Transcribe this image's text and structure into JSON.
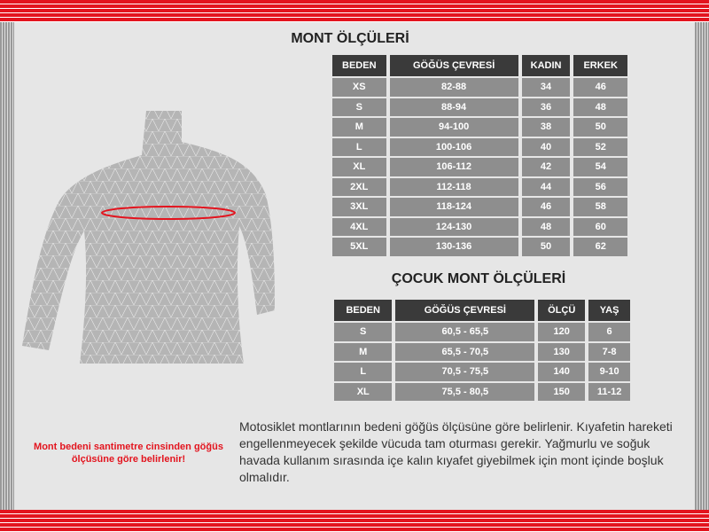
{
  "adult": {
    "title": "MONT ÖLÇÜLERİ",
    "headers": [
      "BEDEN",
      "GÖĞÜS ÇEVRESİ",
      "KADIN",
      "ERKEK"
    ],
    "rows": [
      [
        "XS",
        "82-88",
        "34",
        "46"
      ],
      [
        "S",
        "88-94",
        "36",
        "48"
      ],
      [
        "M",
        "94-100",
        "38",
        "50"
      ],
      [
        "L",
        "100-106",
        "40",
        "52"
      ],
      [
        "XL",
        "106-112",
        "42",
        "54"
      ],
      [
        "2XL",
        "112-118",
        "44",
        "56"
      ],
      [
        "3XL",
        "118-124",
        "46",
        "58"
      ],
      [
        "4XL",
        "124-130",
        "48",
        "60"
      ],
      [
        "5XL",
        "130-136",
        "50",
        "62"
      ]
    ]
  },
  "child": {
    "title": "ÇOCUK MONT ÖLÇÜLERİ",
    "headers": [
      "BEDEN",
      "GÖĞÜS ÇEVRESİ",
      "ÖLÇÜ",
      "YAŞ"
    ],
    "rows": [
      [
        "S",
        "60,5 - 65,5",
        "120",
        "6"
      ],
      [
        "M",
        "65,5 - 70,5",
        "130",
        "7-8"
      ],
      [
        "L",
        "70,5 - 75,5",
        "140",
        "9-10"
      ],
      [
        "XL",
        "75,5 - 80,5",
        "150",
        "11-12"
      ]
    ]
  },
  "note": "Mont bedeni santimetre cinsinden göğüs ölçüsüne göre belirlenir!",
  "description": "Motosiklet montlarının bedeni göğüs ölçüsüne göre belirlenir. Kıyafetin hareketi engellenmeyecek şekilde vücuda tam oturması gerekir. Yağmurlu ve soğuk havada kullanım sırasında içe kalın kıyafet giyebilmek için mont içinde boşluk olmalıdır.",
  "colors": {
    "accent": "#e3141e",
    "header": "#3a3a3a",
    "cell": "#8e8e8e"
  }
}
